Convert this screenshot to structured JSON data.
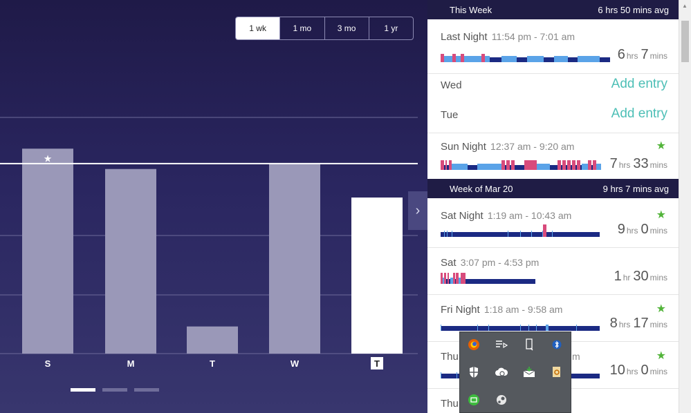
{
  "range_tabs": [
    "1 wk",
    "1 mo",
    "3 mo",
    "1 yr"
  ],
  "active_range": "1 wk",
  "chart_data": {
    "type": "bar",
    "categories": [
      "S",
      "M",
      "T",
      "W",
      "T"
    ],
    "values": [
      7.55,
      6.8,
      1.0,
      7.0,
      5.75
    ],
    "highlight_index": 4,
    "starred_index": 0,
    "goal_line": 7.0,
    "grid": true,
    "ylim": [
      0,
      11.5
    ],
    "legend": "none"
  },
  "this_week": {
    "label": "This Week",
    "avg": "6 hrs 50 mins avg"
  },
  "week_mar20": {
    "label": "Week of Mar 20",
    "avg": "9 hrs 7 mins avg"
  },
  "entries": {
    "last_night": {
      "title": "Last Night",
      "time": "11:54 pm - 7:01 am",
      "h": "6",
      "hu": "hrs",
      "m": "7",
      "mu": "mins"
    },
    "wed": {
      "title": "Wed",
      "action": "Add entry"
    },
    "tue": {
      "title": "Tue",
      "action": "Add entry"
    },
    "sun_night": {
      "title": "Sun Night",
      "time": "12:37 am - 9:20 am",
      "h": "7",
      "hu": "hrs",
      "m": "33",
      "mu": "mins"
    },
    "sat_night": {
      "title": "Sat Night",
      "time": "1:19 am - 10:43 am",
      "h": "9",
      "hu": "hrs",
      "m": "0",
      "mu": "mins"
    },
    "sat": {
      "title": "Sat",
      "time": "3:07 pm - 4:53 pm",
      "h": "1",
      "hu": "hr",
      "m": "30",
      "mu": "mins"
    },
    "fri_night": {
      "title": "Fri Night",
      "time": "1:18 am - 9:58 am",
      "h": "8",
      "hu": "hrs",
      "m": "17",
      "mu": "mins"
    },
    "thu_night": {
      "title": "Thu",
      "time": "m",
      "h": "10",
      "hu": "hrs",
      "m": "0",
      "mu": "mins"
    },
    "thu2": {
      "title": "Thu"
    }
  },
  "tray_icons": [
    "firefox-icon",
    "media-playlist-icon",
    "usb-device-icon",
    "bluetooth-icon",
    "security-shield-icon",
    "cloud-sync-icon",
    "mail-download-icon",
    "search-file-icon",
    "greenshot-icon",
    "steam-icon"
  ],
  "colors": {
    "accent": "#4dbfb6",
    "star": "#52b43a",
    "header": "#1f1c45",
    "sleep_dark": "#1b2a83",
    "sleep_light": "#5aa3e8",
    "sleep_awake": "#d84b7c"
  }
}
